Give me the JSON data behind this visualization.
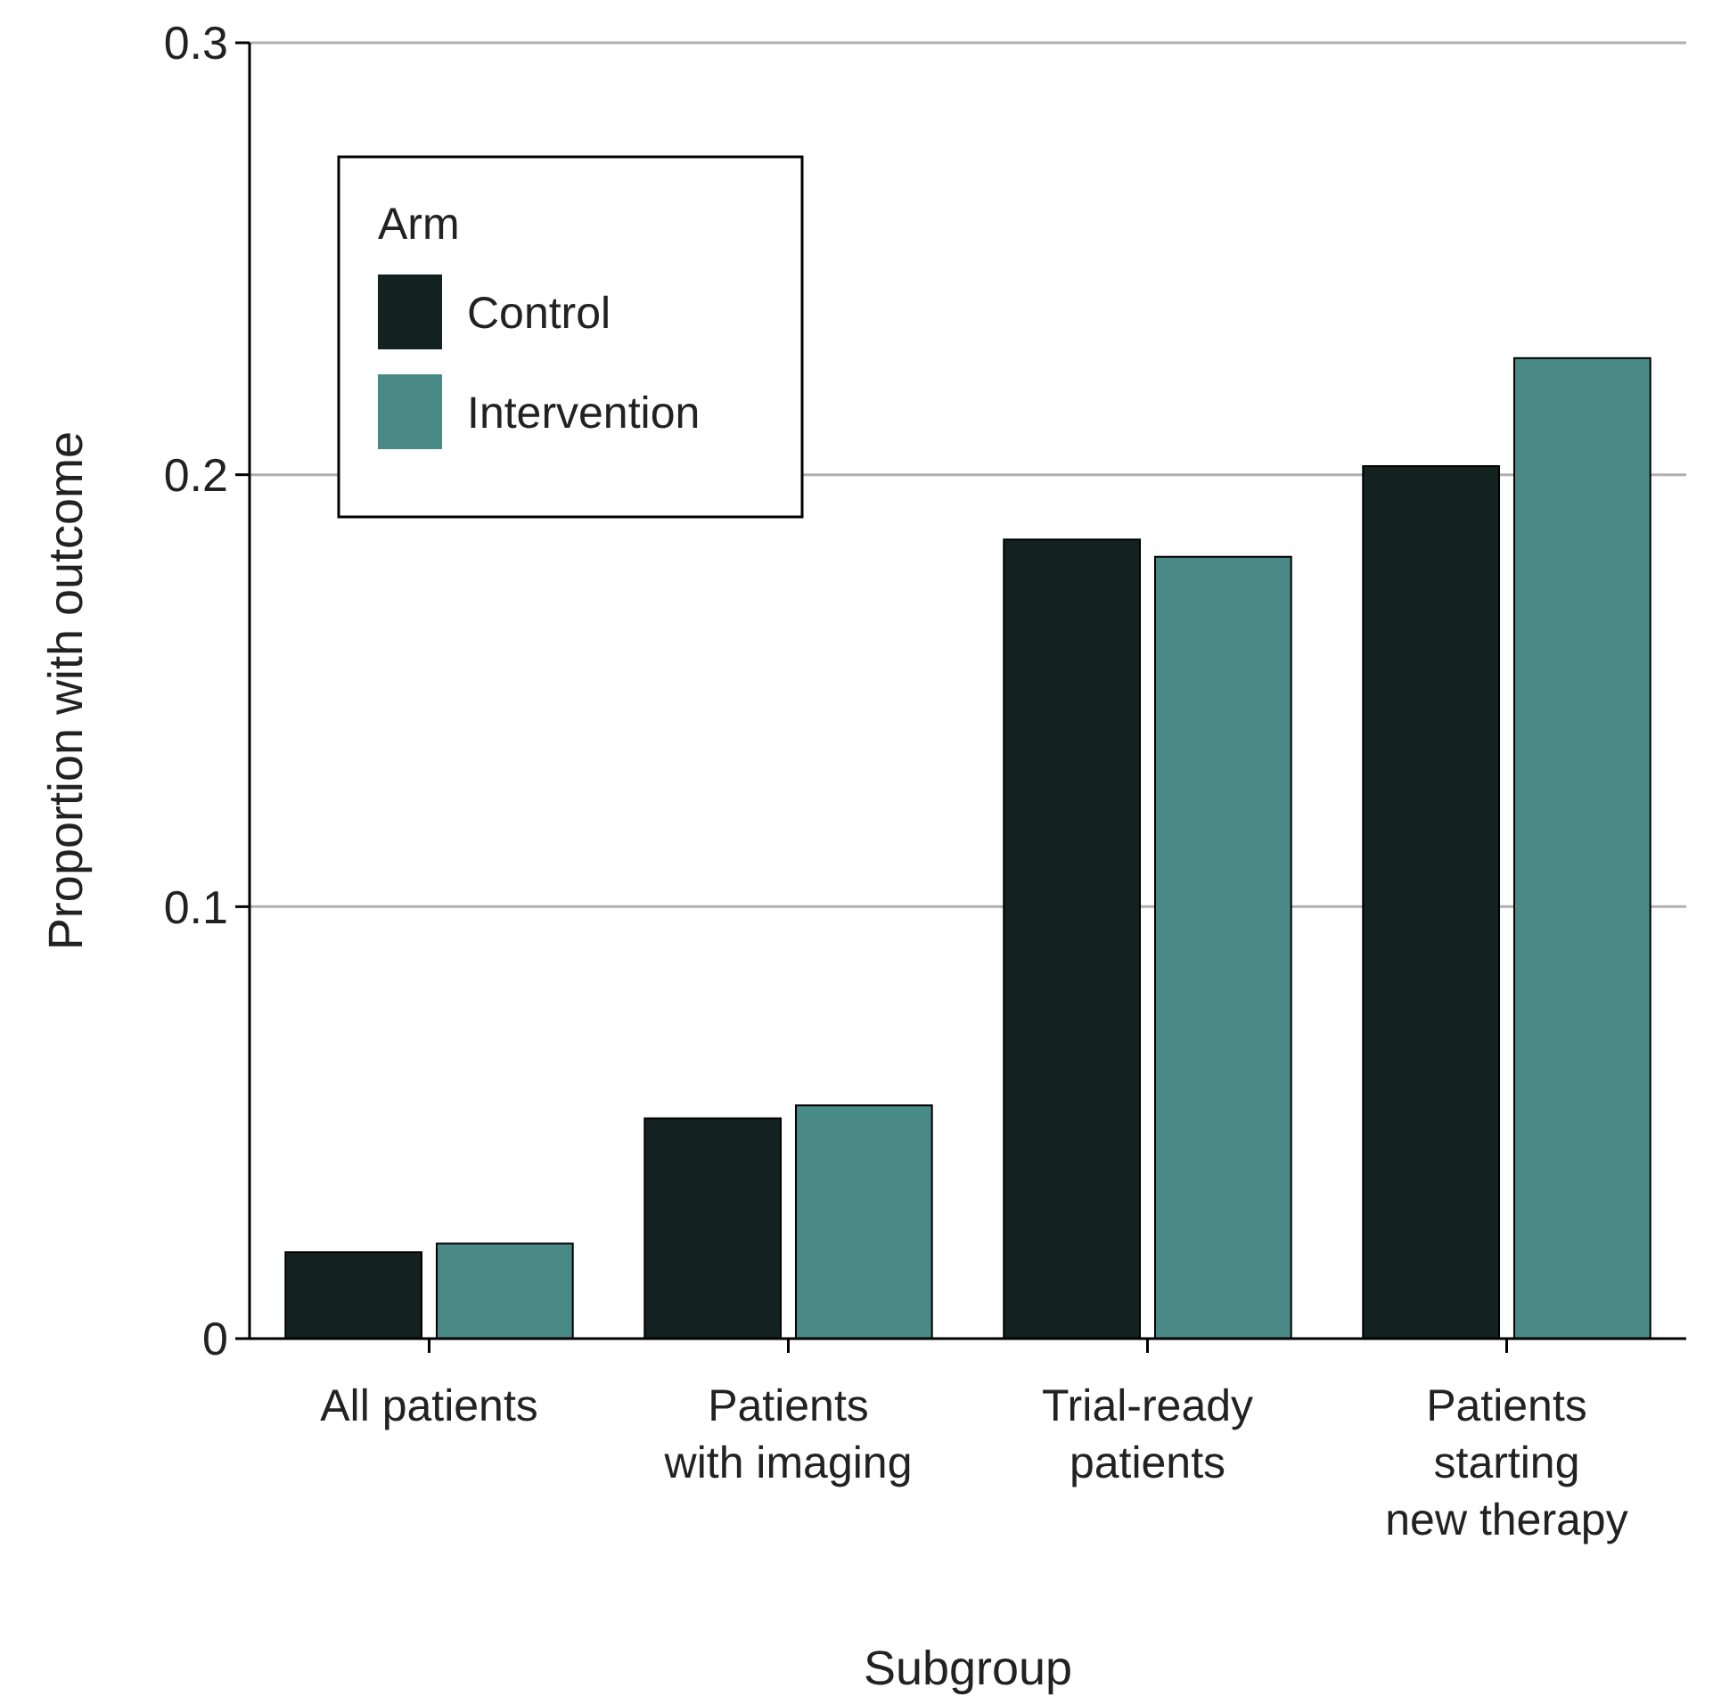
{
  "chart_data": {
    "type": "bar",
    "xlabel": "Subgroup",
    "ylabel": "Proportion with outcome",
    "legend_title": "Arm",
    "categories": [
      "All patients",
      "Patients\nwith imaging",
      "Trial-ready\npatients",
      "Patients\nstarting\nnew therapy"
    ],
    "series": [
      {
        "name": "Control",
        "color": "#132121",
        "values": [
          0.02,
          0.051,
          0.185,
          0.202
        ]
      },
      {
        "name": "Intervention",
        "color": "#4a8a86",
        "values": [
          0.022,
          0.054,
          0.181,
          0.227
        ]
      }
    ],
    "ylim": [
      0,
      0.3
    ],
    "yticks": [
      0,
      0.1,
      0.2,
      0.3
    ],
    "grid": "y",
    "legend": "top left"
  }
}
